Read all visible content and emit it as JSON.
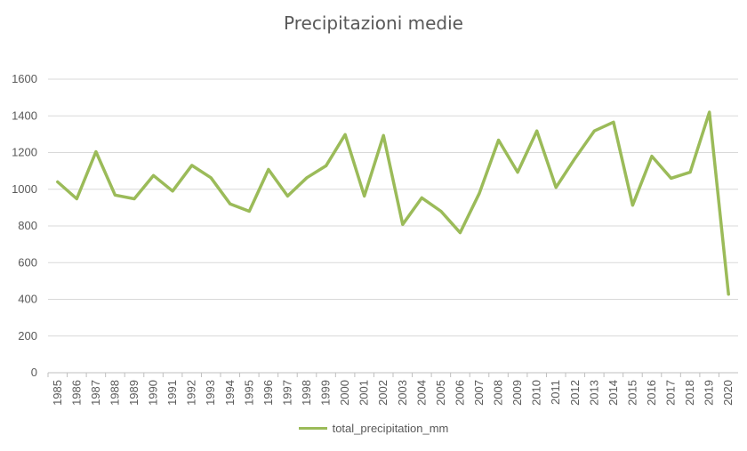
{
  "chart_data": {
    "type": "line",
    "title": "Precipitazioni medie",
    "xlabel": "",
    "ylabel": "",
    "ylim": [
      0,
      1600
    ],
    "yticks": [
      0,
      200,
      400,
      600,
      800,
      1000,
      1200,
      1400,
      1600
    ],
    "grid": true,
    "legend_position": "bottom",
    "x": [
      "1985",
      "1986",
      "1987",
      "1988",
      "1989",
      "1990",
      "1991",
      "1992",
      "1993",
      "1994",
      "1995",
      "1996",
      "1997",
      "1998",
      "1999",
      "2000",
      "2001",
      "2002",
      "2003",
      "2004",
      "2005",
      "2006",
      "2007",
      "2008",
      "2009",
      "2010",
      "2011",
      "2012",
      "2013",
      "2014",
      "2015",
      "2016",
      "2017",
      "2018",
      "2019",
      "2020"
    ],
    "series": [
      {
        "name": "total_precipitation_mm",
        "color": "#9bbb59",
        "values": [
          1040,
          948,
          1205,
          968,
          948,
          1075,
          990,
          1130,
          1063,
          920,
          880,
          1108,
          963,
          1063,
          1128,
          1298,
          963,
          1293,
          808,
          953,
          880,
          763,
          978,
          1268,
          1093,
          1318,
          1010,
          1170,
          1318,
          1366,
          913,
          1180,
          1060,
          1093,
          1420,
          428
        ]
      }
    ]
  }
}
